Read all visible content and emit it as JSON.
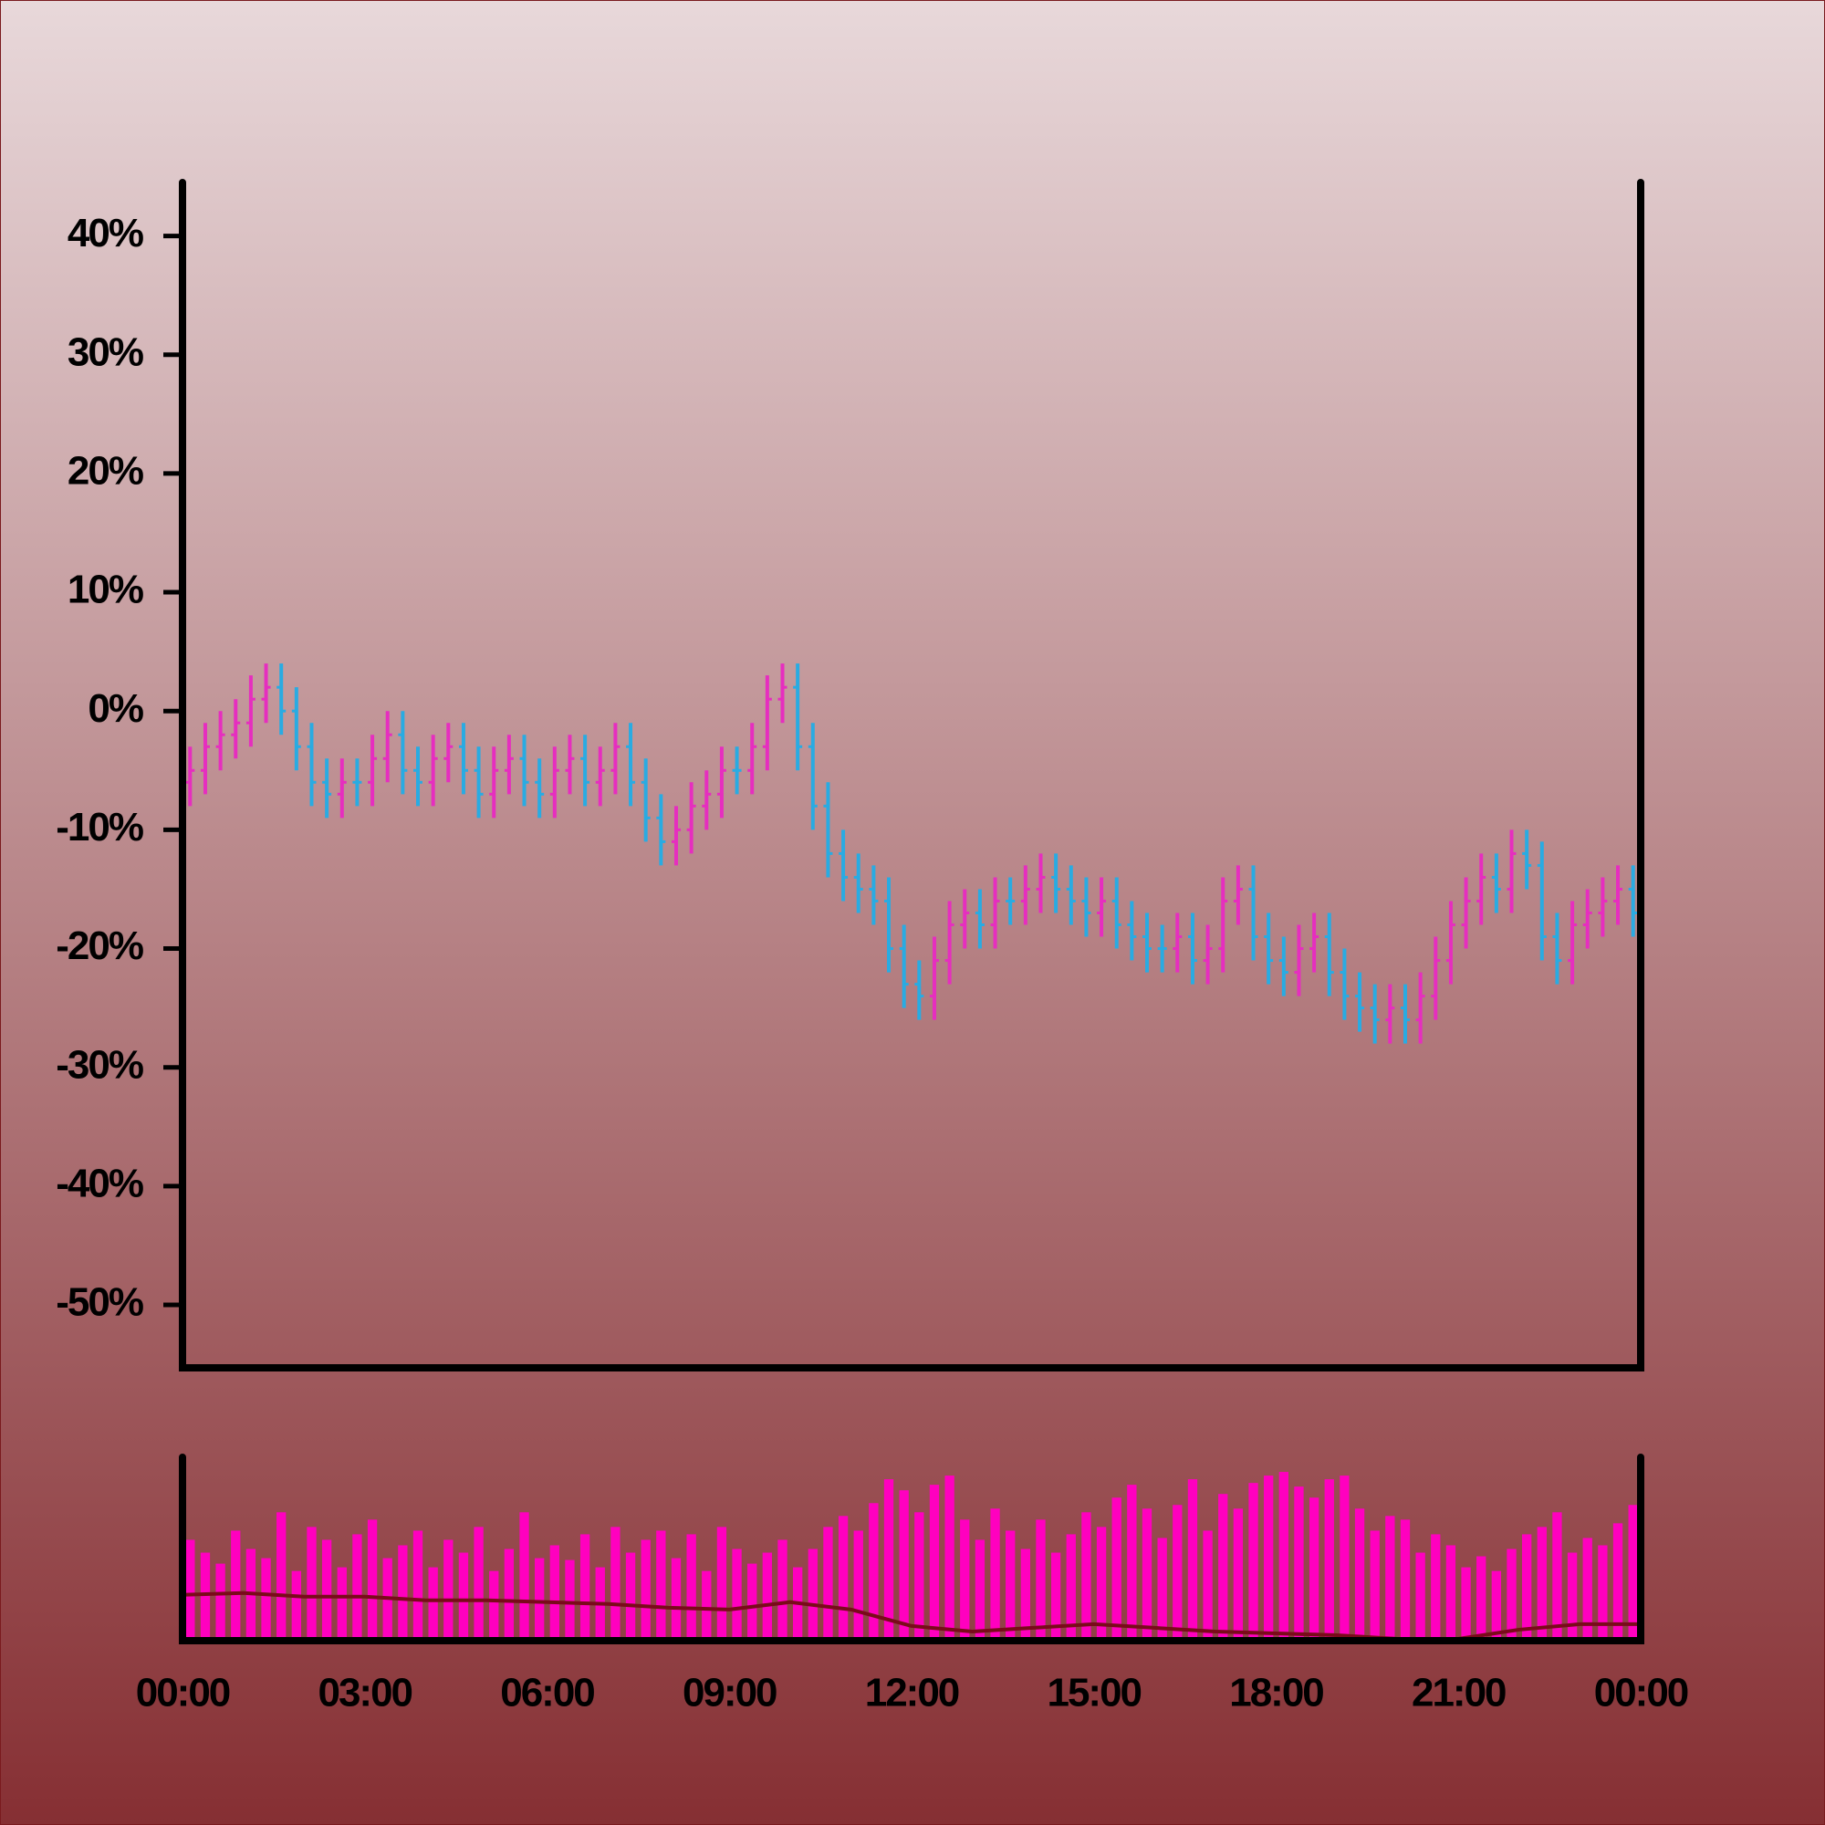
{
  "chart_data": {
    "type": "ohlc",
    "up_color": "#e62ebf",
    "down_color": "#29abe2",
    "xlim": [
      0,
      24
    ],
    "ylim": [
      -55.3,
      44.5
    ],
    "yticks": [
      {
        "value": 40,
        "label": "40%"
      },
      {
        "value": 30,
        "label": "30%"
      },
      {
        "value": 20,
        "label": "20%"
      },
      {
        "value": 10,
        "label": "10%"
      },
      {
        "value": 0,
        "label": "0%"
      },
      {
        "value": -10,
        "label": "-10%"
      },
      {
        "value": -20,
        "label": "-20%"
      },
      {
        "value": -30,
        "label": "-30%"
      },
      {
        "value": -40,
        "label": "-40%"
      },
      {
        "value": -50,
        "label": "-50%"
      }
    ],
    "xticks": [
      {
        "value": 0,
        "label": "00:00"
      },
      {
        "value": 3,
        "label": "03:00"
      },
      {
        "value": 6,
        "label": "06:00"
      },
      {
        "value": 9,
        "label": "09:00"
      },
      {
        "value": 12,
        "label": "12:00"
      },
      {
        "value": 15,
        "label": "15:00"
      },
      {
        "value": 18,
        "label": "18:00"
      },
      {
        "value": 21,
        "label": "21:00"
      },
      {
        "value": 24,
        "label": "00:00"
      }
    ],
    "x": [
      0.125,
      0.375,
      0.625,
      0.875,
      1.125,
      1.375,
      1.625,
      1.875,
      2.125,
      2.375,
      2.625,
      2.875,
      3.125,
      3.375,
      3.625,
      3.875,
      4.125,
      4.375,
      4.625,
      4.875,
      5.125,
      5.375,
      5.625,
      5.875,
      6.125,
      6.375,
      6.625,
      6.875,
      7.125,
      7.375,
      7.625,
      7.875,
      8.125,
      8.375,
      8.625,
      8.875,
      9.125,
      9.375,
      9.625,
      9.875,
      10.125,
      10.375,
      10.625,
      10.875,
      11.125,
      11.375,
      11.625,
      11.875,
      12.125,
      12.375,
      12.625,
      12.875,
      13.125,
      13.375,
      13.625,
      13.875,
      14.125,
      14.375,
      14.625,
      14.875,
      15.125,
      15.375,
      15.625,
      15.875,
      16.125,
      16.375,
      16.625,
      16.875,
      17.125,
      17.375,
      17.625,
      17.875,
      18.125,
      18.375,
      18.625,
      18.875,
      19.125,
      19.375,
      19.625,
      19.875,
      20.125,
      20.375,
      20.625,
      20.875,
      21.125,
      21.375,
      21.625,
      21.875,
      22.125,
      22.375,
      22.625,
      22.875,
      23.125,
      23.375,
      23.625,
      23.875
    ],
    "open": [
      -6,
      -5,
      -3,
      -2,
      -1,
      1,
      2,
      0,
      -3,
      -6,
      -7,
      -6,
      -6,
      -4,
      -2,
      -5,
      -6,
      -4,
      -3,
      -5,
      -7,
      -5,
      -4,
      -6,
      -7,
      -5,
      -4,
      -6,
      -5,
      -3,
      -6,
      -9,
      -11,
      -10,
      -8,
      -7,
      -5,
      -5,
      -3,
      1,
      2,
      -3,
      -8,
      -12,
      -14,
      -15,
      -16,
      -20,
      -23,
      -24,
      -21,
      -18,
      -17,
      -18,
      -16,
      -16,
      -15,
      -14,
      -15,
      -16,
      -17,
      -16,
      -18,
      -19,
      -20,
      -20,
      -19,
      -21,
      -20,
      -16,
      -15,
      -19,
      -21,
      -22,
      -20,
      -19,
      -22,
      -24,
      -25,
      -26,
      -25,
      -26,
      -24,
      -21,
      -18,
      -16,
      -14,
      -15,
      -12,
      -13,
      -19,
      -21,
      -18,
      -17,
      -16,
      -15
    ],
    "high": [
      -3,
      -1,
      0,
      1,
      3,
      4,
      4,
      2,
      -1,
      -4,
      -4,
      -4,
      -2,
      0,
      0,
      -3,
      -2,
      -1,
      -1,
      -3,
      -3,
      -2,
      -2,
      -4,
      -3,
      -2,
      -2,
      -3,
      -1,
      -1,
      -4,
      -7,
      -8,
      -6,
      -5,
      -3,
      -3,
      -1,
      3,
      4,
      4,
      -1,
      -6,
      -10,
      -12,
      -13,
      -14,
      -18,
      -21,
      -19,
      -16,
      -15,
      -15,
      -14,
      -14,
      -13,
      -12,
      -12,
      -13,
      -14,
      -14,
      -14,
      -16,
      -17,
      -18,
      -17,
      -17,
      -18,
      -14,
      -13,
      -13,
      -17,
      -19,
      -18,
      -17,
      -17,
      -20,
      -22,
      -23,
      -23,
      -23,
      -22,
      -19,
      -16,
      -14,
      -12,
      -12,
      -10,
      -10,
      -11,
      -17,
      -16,
      -15,
      -14,
      -13,
      -13
    ],
    "low": [
      -8,
      -7,
      -5,
      -4,
      -3,
      -1,
      -2,
      -5,
      -8,
      -9,
      -9,
      -8,
      -8,
      -6,
      -7,
      -8,
      -8,
      -6,
      -7,
      -9,
      -9,
      -7,
      -8,
      -9,
      -9,
      -7,
      -8,
      -8,
      -7,
      -8,
      -11,
      -13,
      -13,
      -12,
      -10,
      -9,
      -7,
      -7,
      -5,
      -1,
      -5,
      -10,
      -14,
      -16,
      -17,
      -18,
      -22,
      -25,
      -26,
      -26,
      -23,
      -20,
      -20,
      -20,
      -18,
      -18,
      -17,
      -17,
      -18,
      -19,
      -19,
      -20,
      -21,
      -22,
      -22,
      -22,
      -23,
      -23,
      -22,
      -18,
      -21,
      -23,
      -24,
      -24,
      -22,
      -24,
      -26,
      -27,
      -28,
      -28,
      -28,
      -28,
      -26,
      -23,
      -20,
      -18,
      -17,
      -17,
      -15,
      -21,
      -23,
      -23,
      -20,
      -19,
      -18,
      -19
    ],
    "close": [
      -5,
      -3,
      -2,
      -1,
      1,
      2,
      0,
      -3,
      -6,
      -7,
      -6,
      -6,
      -4,
      -2,
      -5,
      -6,
      -4,
      -3,
      -5,
      -7,
      -5,
      -4,
      -6,
      -7,
      -5,
      -4,
      -6,
      -5,
      -3,
      -6,
      -9,
      -11,
      -10,
      -8,
      -7,
      -5,
      -5,
      -3,
      1,
      2,
      -3,
      -8,
      -12,
      -14,
      -15,
      -16,
      -20,
      -23,
      -24,
      -21,
      -18,
      -17,
      -18,
      -16,
      -16,
      -15,
      -14,
      -15,
      -16,
      -17,
      -16,
      -18,
      -19,
      -20,
      -20,
      -19,
      -21,
      -20,
      -16,
      -15,
      -19,
      -21,
      -22,
      -20,
      -19,
      -22,
      -24,
      -25,
      -26,
      -25,
      -26,
      -24,
      -21,
      -18,
      -16,
      -14,
      -15,
      -12,
      -13,
      -19,
      -21,
      -18,
      -17,
      -16,
      -15,
      -17
    ],
    "volume": {
      "color": "#ff00bf",
      "ylim": [
        0,
        100
      ],
      "values": [
        55,
        48,
        42,
        60,
        50,
        45,
        70,
        38,
        62,
        55,
        40,
        58,
        66,
        45,
        52,
        60,
        40,
        55,
        48,
        62,
        38,
        50,
        70,
        45,
        52,
        44,
        58,
        40,
        62,
        48,
        55,
        60,
        45,
        58,
        38,
        62,
        50,
        42,
        48,
        55,
        40,
        50,
        62,
        68,
        60,
        75,
        88,
        82,
        70,
        85,
        90,
        66,
        55,
        72,
        60,
        50,
        66,
        48,
        58,
        70,
        62,
        78,
        85,
        72,
        56,
        74,
        88,
        60,
        80,
        72,
        86,
        90,
        92,
        84,
        78,
        88,
        90,
        72,
        60,
        68,
        66,
        48,
        58,
        52,
        40,
        46,
        38,
        50,
        58,
        62,
        70,
        48,
        56,
        52,
        64,
        74
      ],
      "moving_average": {
        "color": "#7a0a1a",
        "x": [
          0,
          1,
          2,
          3,
          4,
          5,
          6,
          7,
          8,
          9,
          10,
          11,
          12,
          13,
          14,
          15,
          16,
          17,
          18,
          19,
          20,
          21,
          22,
          23,
          24
        ],
        "values": [
          25,
          26,
          24,
          24,
          22,
          22,
          21,
          20,
          18,
          17,
          21,
          17,
          8,
          5,
          7,
          9,
          7,
          5,
          4,
          3,
          1,
          1,
          6,
          9,
          9
        ]
      }
    }
  }
}
